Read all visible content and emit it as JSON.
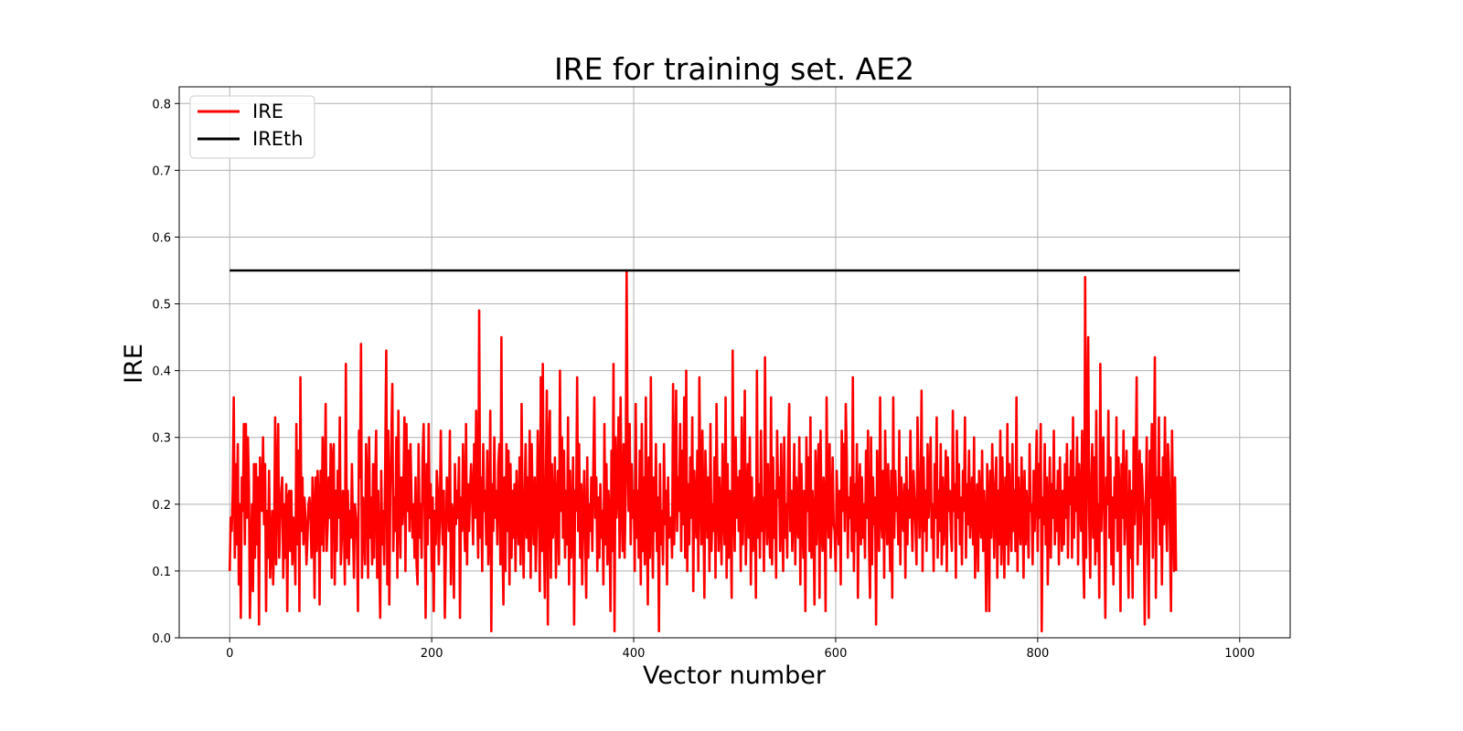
{
  "chart_data": {
    "type": "line",
    "title": "IRE for training set. AE2",
    "xlabel": "Vector number",
    "ylabel": "IRE",
    "xlim": [
      -50,
      1050
    ],
    "ylim": [
      0,
      0.825
    ],
    "xticks": [
      0,
      200,
      400,
      600,
      800,
      1000
    ],
    "yticks": [
      0.0,
      0.1,
      0.2,
      0.3,
      0.4,
      0.5,
      0.6,
      0.7,
      0.8
    ],
    "grid": true,
    "legend_position": "top-left",
    "series": [
      {
        "name": "IRE",
        "color": "#ff0000",
        "x_start": 0,
        "x_step": 1,
        "values": [
          0.1,
          0.18,
          0.16,
          0.22,
          0.36,
          0.12,
          0.26,
          0.14,
          0.29,
          0.08,
          0.2,
          0.03,
          0.24,
          0.19,
          0.32,
          0.14,
          0.32,
          0.18,
          0.3,
          0.23,
          0.03,
          0.12,
          0.2,
          0.07,
          0.26,
          0.12,
          0.26,
          0.14,
          0.24,
          0.02,
          0.27,
          0.21,
          0.19,
          0.3,
          0.17,
          0.26,
          0.04,
          0.19,
          0.12,
          0.25,
          0.09,
          0.14,
          0.19,
          0.08,
          0.15,
          0.33,
          0.11,
          0.24,
          0.32,
          0.12,
          0.18,
          0.22,
          0.24,
          0.09,
          0.2,
          0.12,
          0.23,
          0.04,
          0.21,
          0.22,
          0.13,
          0.22,
          0.11,
          0.18,
          0.16,
          0.08,
          0.32,
          0.14,
          0.28,
          0.04,
          0.39,
          0.16,
          0.24,
          0.14,
          0.21,
          0.18,
          0.11,
          0.15,
          0.2,
          0.21,
          0.18,
          0.12,
          0.24,
          0.19,
          0.06,
          0.24,
          0.13,
          0.25,
          0.21,
          0.05,
          0.25,
          0.14,
          0.3,
          0.13,
          0.22,
          0.35,
          0.13,
          0.17,
          0.24,
          0.18,
          0.29,
          0.09,
          0.27,
          0.29,
          0.08,
          0.22,
          0.13,
          0.25,
          0.18,
          0.33,
          0.11,
          0.15,
          0.22,
          0.18,
          0.08,
          0.41,
          0.12,
          0.22,
          0.11,
          0.19,
          0.15,
          0.26,
          0.17,
          0.09,
          0.2,
          0.18,
          0.15,
          0.04,
          0.31,
          0.24,
          0.44,
          0.09,
          0.21,
          0.17,
          0.11,
          0.29,
          0.23,
          0.09,
          0.3,
          0.15,
          0.21,
          0.11,
          0.26,
          0.12,
          0.23,
          0.31,
          0.09,
          0.22,
          0.12,
          0.03,
          0.25,
          0.14,
          0.19,
          0.11,
          0.27,
          0.43,
          0.08,
          0.31,
          0.05,
          0.22,
          0.29,
          0.38,
          0.13,
          0.21,
          0.16,
          0.3,
          0.09,
          0.34,
          0.19,
          0.12,
          0.24,
          0.17,
          0.22,
          0.33,
          0.1,
          0.32,
          0.19,
          0.28,
          0.16,
          0.29,
          0.21,
          0.15,
          0.2,
          0.12,
          0.24,
          0.11,
          0.08,
          0.29,
          0.15,
          0.2,
          0.12,
          0.27,
          0.32,
          0.19,
          0.03,
          0.26,
          0.14,
          0.32,
          0.18,
          0.23,
          0.1,
          0.21,
          0.04,
          0.19,
          0.14,
          0.25,
          0.22,
          0.11,
          0.18,
          0.31,
          0.19,
          0.14,
          0.22,
          0.03,
          0.13,
          0.24,
          0.21,
          0.16,
          0.31,
          0.08,
          0.2,
          0.18,
          0.06,
          0.26,
          0.17,
          0.22,
          0.18,
          0.27,
          0.03,
          0.21,
          0.16,
          0.29,
          0.19,
          0.13,
          0.32,
          0.11,
          0.23,
          0.16,
          0.22,
          0.26,
          0.21,
          0.14,
          0.29,
          0.18,
          0.34,
          0.2,
          0.12,
          0.49,
          0.15,
          0.24,
          0.1,
          0.29,
          0.19,
          0.22,
          0.14,
          0.28,
          0.11,
          0.17,
          0.34,
          0.01,
          0.23,
          0.16,
          0.3,
          0.18,
          0.22,
          0.14,
          0.26,
          0.29,
          0.11,
          0.45,
          0.15,
          0.05,
          0.24,
          0.1,
          0.29,
          0.16,
          0.28,
          0.08,
          0.26,
          0.12,
          0.22,
          0.15,
          0.23,
          0.1,
          0.25,
          0.18,
          0.14,
          0.27,
          0.11,
          0.35,
          0.18,
          0.09,
          0.21,
          0.29,
          0.15,
          0.24,
          0.13,
          0.31,
          0.09,
          0.29,
          0.19,
          0.14,
          0.24,
          0.1,
          0.17,
          0.31,
          0.22,
          0.07,
          0.39,
          0.13,
          0.41,
          0.16,
          0.06,
          0.23,
          0.37,
          0.02,
          0.29,
          0.34,
          0.09,
          0.26,
          0.15,
          0.18,
          0.27,
          0.09,
          0.2,
          0.25,
          0.11,
          0.4,
          0.19,
          0.3,
          0.15,
          0.28,
          0.12,
          0.22,
          0.14,
          0.33,
          0.08,
          0.25,
          0.12,
          0.16,
          0.27,
          0.02,
          0.22,
          0.19,
          0.39,
          0.16,
          0.29,
          0.12,
          0.23,
          0.08,
          0.19,
          0.25,
          0.15,
          0.06,
          0.27,
          0.12,
          0.2,
          0.16,
          0.24,
          0.13,
          0.25,
          0.36,
          0.18,
          0.24,
          0.1,
          0.21,
          0.12,
          0.23,
          0.15,
          0.19,
          0.08,
          0.32,
          0.14,
          0.26,
          0.11,
          0.22,
          0.18,
          0.04,
          0.28,
          0.13,
          0.41,
          0.01,
          0.3,
          0.18,
          0.23,
          0.33,
          0.12,
          0.36,
          0.2,
          0.13,
          0.29,
          0.12,
          0.21,
          0.55,
          0.27,
          0.19,
          0.32,
          0.14,
          0.26,
          0.18,
          0.22,
          0.1,
          0.35,
          0.15,
          0.22,
          0.12,
          0.28,
          0.08,
          0.32,
          0.13,
          0.24,
          0.11,
          0.36,
          0.18,
          0.05,
          0.27,
          0.12,
          0.39,
          0.18,
          0.09,
          0.24,
          0.16,
          0.29,
          0.13,
          0.21,
          0.01,
          0.26,
          0.14,
          0.19,
          0.11,
          0.29,
          0.17,
          0.22,
          0.08,
          0.24,
          0.15,
          0.16,
          0.18,
          0.12,
          0.38,
          0.14,
          0.22,
          0.37,
          0.16,
          0.24,
          0.19,
          0.32,
          0.13,
          0.28,
          0.17,
          0.36,
          0.12,
          0.4,
          0.1,
          0.23,
          0.14,
          0.27,
          0.18,
          0.33,
          0.07,
          0.25,
          0.2,
          0.15,
          0.28,
          0.1,
          0.39,
          0.22,
          0.14,
          0.31,
          0.19,
          0.06,
          0.28,
          0.22,
          0.15,
          0.24,
          0.1,
          0.32,
          0.13,
          0.2,
          0.16,
          0.27,
          0.09,
          0.35,
          0.21,
          0.13,
          0.24,
          0.18,
          0.11,
          0.29,
          0.19,
          0.14,
          0.36,
          0.09,
          0.26,
          0.12,
          0.22,
          0.17,
          0.06,
          0.43,
          0.2,
          0.13,
          0.3,
          0.18,
          0.24,
          0.16,
          0.25,
          0.1,
          0.33,
          0.14,
          0.22,
          0.37,
          0.11,
          0.19,
          0.26,
          0.15,
          0.3,
          0.08,
          0.24,
          0.13,
          0.18,
          0.21,
          0.06,
          0.4,
          0.15,
          0.23,
          0.12,
          0.31,
          0.16,
          0.21,
          0.1,
          0.42,
          0.2,
          0.14,
          0.26,
          0.18,
          0.12,
          0.36,
          0.11,
          0.27,
          0.15,
          0.22,
          0.09,
          0.31,
          0.21,
          0.24,
          0.13,
          0.29,
          0.18,
          0.1,
          0.3,
          0.15,
          0.2,
          0.12,
          0.28,
          0.35,
          0.16,
          0.22,
          0.13,
          0.19,
          0.29,
          0.11,
          0.24,
          0.17,
          0.15,
          0.3,
          0.08,
          0.26,
          0.18,
          0.12,
          0.22,
          0.04,
          0.3,
          0.19,
          0.27,
          0.13,
          0.33,
          0.12,
          0.22,
          0.18,
          0.05,
          0.28,
          0.14,
          0.23,
          0.29,
          0.06,
          0.31,
          0.17,
          0.13,
          0.24,
          0.21,
          0.04,
          0.36,
          0.2,
          0.15,
          0.29,
          0.12,
          0.18,
          0.27,
          0.17,
          0.16,
          0.1,
          0.25,
          0.19,
          0.14,
          0.22,
          0.08,
          0.31,
          0.19,
          0.29,
          0.16,
          0.35,
          0.27,
          0.12,
          0.21,
          0.18,
          0.24,
          0.13,
          0.39,
          0.1,
          0.23,
          0.16,
          0.29,
          0.06,
          0.21,
          0.26,
          0.14,
          0.24,
          0.15,
          0.2,
          0.12,
          0.28,
          0.18,
          0.31,
          0.14,
          0.06,
          0.3,
          0.11,
          0.24,
          0.17,
          0.21,
          0.02,
          0.28,
          0.2,
          0.13,
          0.36,
          0.18,
          0.15,
          0.25,
          0.09,
          0.31,
          0.2,
          0.14,
          0.26,
          0.17,
          0.1,
          0.25,
          0.06,
          0.36,
          0.15,
          0.25,
          0.19,
          0.21,
          0.14,
          0.31,
          0.11,
          0.24,
          0.19,
          0.16,
          0.23,
          0.09,
          0.27,
          0.14,
          0.22,
          0.18,
          0.31,
          0.19,
          0.13,
          0.25,
          0.21,
          0.17,
          0.11,
          0.33,
          0.24,
          0.15,
          0.19,
          0.37,
          0.1,
          0.27,
          0.16,
          0.22,
          0.13,
          0.29,
          0.18,
          0.23,
          0.3,
          0.15,
          0.2,
          0.1,
          0.26,
          0.18,
          0.33,
          0.12,
          0.22,
          0.16,
          0.29,
          0.11,
          0.24,
          0.14,
          0.18,
          0.28,
          0.1,
          0.27,
          0.19,
          0.22,
          0.16,
          0.13,
          0.34,
          0.19,
          0.23,
          0.09,
          0.31,
          0.18,
          0.26,
          0.14,
          0.21,
          0.11,
          0.25,
          0.19,
          0.33,
          0.12,
          0.23,
          0.17,
          0.28,
          0.15,
          0.2,
          0.24,
          0.14,
          0.3,
          0.09,
          0.18,
          0.23,
          0.1,
          0.25,
          0.19,
          0.15,
          0.28,
          0.13,
          0.22,
          0.17,
          0.04,
          0.26,
          0.2,
          0.04,
          0.25,
          0.15,
          0.29,
          0.2,
          0.12,
          0.23,
          0.27,
          0.09,
          0.22,
          0.14,
          0.31,
          0.11,
          0.27,
          0.19,
          0.09,
          0.24,
          0.14,
          0.32,
          0.11,
          0.26,
          0.18,
          0.13,
          0.29,
          0.16,
          0.22,
          0.13,
          0.36,
          0.1,
          0.24,
          0.18,
          0.14,
          0.27,
          0.2,
          0.09,
          0.25,
          0.14,
          0.22,
          0.17,
          0.12,
          0.29,
          0.19,
          0.2,
          0.11,
          0.25,
          0.16,
          0.23,
          0.31,
          0.13,
          0.26,
          0.18,
          0.32,
          0.01,
          0.21,
          0.17,
          0.29,
          0.14,
          0.24,
          0.08,
          0.19,
          0.27,
          0.12,
          0.23,
          0.18,
          0.31,
          0.14,
          0.22,
          0.16,
          0.25,
          0.11,
          0.27,
          0.19,
          0.13,
          0.22,
          0.14,
          0.26,
          0.18,
          0.29,
          0.12,
          0.24,
          0.2,
          0.28,
          0.12,
          0.33,
          0.15,
          0.24,
          0.19,
          0.3,
          0.11,
          0.26,
          0.21,
          0.16,
          0.31,
          0.13,
          0.06,
          0.54,
          0.12,
          0.29,
          0.45,
          0.18,
          0.09,
          0.23,
          0.29,
          0.15,
          0.27,
          0.11,
          0.34,
          0.13,
          0.2,
          0.06,
          0.41,
          0.16,
          0.24,
          0.3,
          0.16,
          0.03,
          0.24,
          0.2,
          0.34,
          0.15,
          0.27,
          0.11,
          0.21,
          0.08,
          0.24,
          0.18,
          0.33,
          0.13,
          0.27,
          0.21,
          0.04,
          0.26,
          0.18,
          0.31,
          0.14,
          0.2,
          0.28,
          0.14,
          0.06,
          0.25,
          0.12,
          0.22,
          0.06,
          0.3,
          0.17,
          0.24,
          0.39,
          0.11,
          0.21,
          0.28,
          0.14,
          0.26,
          0.22,
          0.18,
          0.02,
          0.2,
          0.3,
          0.15,
          0.03,
          0.28,
          0.21,
          0.32,
          0.12,
          0.23,
          0.42,
          0.06,
          0.24,
          0.18,
          0.33,
          0.14,
          0.24,
          0.08,
          0.27,
          0.17,
          0.33,
          0.21,
          0.13,
          0.29,
          0.25,
          0.15,
          0.04,
          0.31,
          0.18,
          0.1,
          0.24,
          0.1
        ]
      },
      {
        "name": "IREth",
        "color": "#000000",
        "x": [
          0,
          1000
        ],
        "y": [
          0.55,
          0.55
        ]
      }
    ]
  }
}
